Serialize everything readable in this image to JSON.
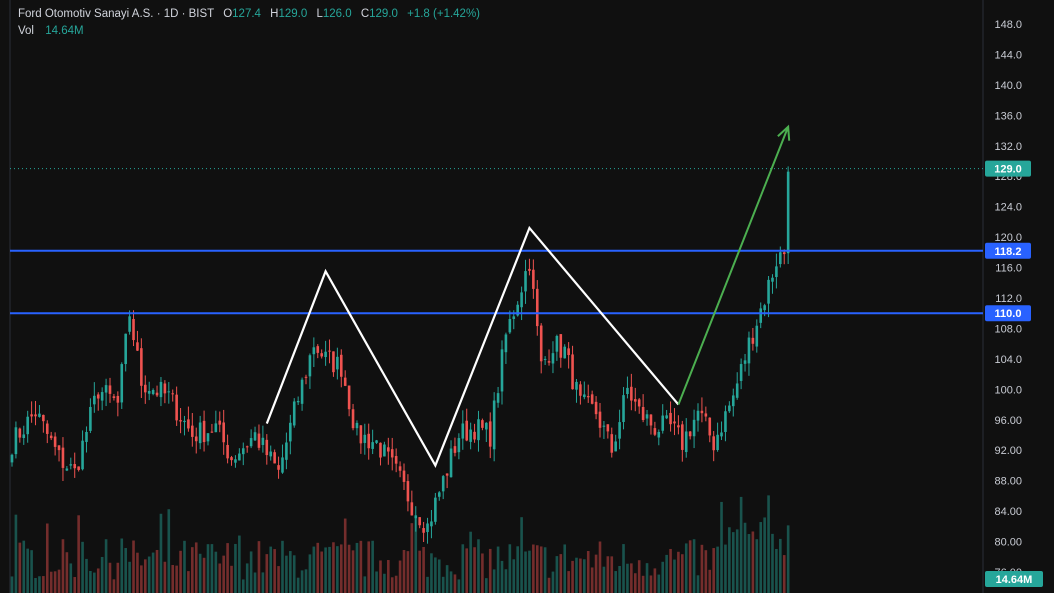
{
  "header": {
    "symbol": "Ford Otomotiv Sanayi A.S. · 1D · BIST",
    "o_label": "O",
    "o_value": "127.4",
    "h_label": "H",
    "h_value": "129.0",
    "l_label": "L",
    "l_value": "126.0",
    "c_label": "C",
    "c_value": "129.0",
    "change": "+1.8 (+1.42%)",
    "vol_label": "Vol",
    "vol_value": "14.64M"
  },
  "colors": {
    "background": "#101010",
    "up": "#26a69a",
    "down": "#ef5350",
    "level_line": "#2962ff",
    "pattern_line": "#ffffff",
    "arrow": "#4caf50",
    "price_tag": "#26a69a",
    "level_tag": "#2962ff"
  },
  "chart_data": {
    "type": "candlestick",
    "y_axis_ticks": [
      "148.0",
      "144.0",
      "140.0",
      "136.0",
      "132.0",
      "128.0",
      "124.0",
      "120.0",
      "116.0",
      "112.0",
      "108.0",
      "104.0",
      "100.0",
      "96.00",
      "92.00",
      "88.00",
      "84.00",
      "80.00",
      "76.00"
    ],
    "ylim": [
      74.5,
      150.5
    ],
    "grid": false,
    "current_price": {
      "value": 129.0,
      "label": "129.0"
    },
    "volume_tag": "14.64M",
    "horizontal_levels": [
      {
        "value": 118.2,
        "label": "118.2"
      },
      {
        "value": 110.0,
        "label": "110.0"
      }
    ],
    "pattern_polyline": {
      "description_points_price": [
        95.5,
        115.5,
        90.0,
        121.2,
        98.0
      ],
      "bar_index": [
        65,
        80,
        108,
        132,
        170
      ]
    },
    "projection_arrow": {
      "from_bar": 170,
      "from_price": 98.0,
      "to_bar": 198,
      "to_price": 134.5
    },
    "anchors": [
      {
        "i": 0,
        "p": 93
      },
      {
        "i": 6,
        "p": 97
      },
      {
        "i": 12,
        "p": 91
      },
      {
        "i": 16,
        "p": 89
      },
      {
        "i": 22,
        "p": 100
      },
      {
        "i": 27,
        "p": 98
      },
      {
        "i": 30,
        "p": 110
      },
      {
        "i": 33,
        "p": 101
      },
      {
        "i": 40,
        "p": 99
      },
      {
        "i": 46,
        "p": 94
      },
      {
        "i": 52,
        "p": 95
      },
      {
        "i": 56,
        "p": 91
      },
      {
        "i": 62,
        "p": 94
      },
      {
        "i": 68,
        "p": 89
      },
      {
        "i": 72,
        "p": 97
      },
      {
        "i": 77,
        "p": 106
      },
      {
        "i": 80,
        "p": 104
      },
      {
        "i": 84,
        "p": 103
      },
      {
        "i": 88,
        "p": 94
      },
      {
        "i": 93,
        "p": 93
      },
      {
        "i": 98,
        "p": 89
      },
      {
        "i": 102,
        "p": 85
      },
      {
        "i": 106,
        "p": 82
      },
      {
        "i": 110,
        "p": 88
      },
      {
        "i": 114,
        "p": 94
      },
      {
        "i": 118,
        "p": 95
      },
      {
        "i": 122,
        "p": 94
      },
      {
        "i": 126,
        "p": 107
      },
      {
        "i": 129,
        "p": 112
      },
      {
        "i": 132,
        "p": 117
      },
      {
        "i": 135,
        "p": 103
      },
      {
        "i": 138,
        "p": 106
      },
      {
        "i": 141,
        "p": 105
      },
      {
        "i": 145,
        "p": 98
      },
      {
        "i": 149,
        "p": 97
      },
      {
        "i": 153,
        "p": 92
      },
      {
        "i": 157,
        "p": 100
      },
      {
        "i": 160,
        "p": 97
      },
      {
        "i": 164,
        "p": 95
      },
      {
        "i": 168,
        "p": 95
      },
      {
        "i": 171,
        "p": 93
      },
      {
        "i": 175,
        "p": 97
      },
      {
        "i": 179,
        "p": 93
      },
      {
        "i": 184,
        "p": 99
      },
      {
        "i": 188,
        "p": 106
      },
      {
        "i": 192,
        "p": 112
      },
      {
        "i": 195,
        "p": 117
      },
      {
        "i": 197,
        "p": 118
      },
      {
        "i": 198,
        "p": 129
      }
    ],
    "bar_count": 199,
    "volume_max_ratio": 1.0
  }
}
